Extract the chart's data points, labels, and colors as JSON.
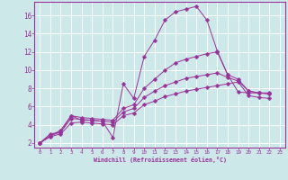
{
  "xlabel": "Windchill (Refroidissement éolien,°C)",
  "background_color": "#cce8e8",
  "grid_color": "#ffffff",
  "line_color": "#993399",
  "xlim": [
    -0.5,
    23.5
  ],
  "ylim": [
    1.5,
    17.5
  ],
  "xticks": [
    0,
    1,
    2,
    3,
    4,
    5,
    6,
    7,
    8,
    9,
    10,
    11,
    12,
    13,
    14,
    15,
    16,
    17,
    18,
    19,
    20,
    21,
    22,
    23
  ],
  "yticks": [
    2,
    4,
    6,
    8,
    10,
    12,
    14,
    16
  ],
  "series": [
    [
      2.0,
      3.0,
      3.2,
      5.0,
      4.5,
      4.5,
      4.4,
      2.6,
      8.5,
      6.9,
      11.5,
      13.3,
      15.5,
      16.4,
      16.7,
      17.0,
      15.5,
      12.1,
      9.5,
      7.6,
      7.5,
      7.5,
      7.5
    ],
    [
      2.0,
      2.8,
      3.4,
      5.0,
      4.8,
      4.7,
      4.6,
      4.5,
      5.8,
      6.2,
      8.0,
      9.0,
      10.0,
      10.8,
      11.2,
      11.5,
      11.8,
      12.0,
      9.5,
      9.0,
      7.7,
      7.5,
      7.4
    ],
    [
      2.0,
      2.8,
      3.2,
      4.7,
      4.6,
      4.5,
      4.4,
      4.3,
      5.4,
      5.8,
      7.0,
      7.7,
      8.3,
      8.7,
      9.1,
      9.3,
      9.5,
      9.7,
      9.2,
      8.8,
      7.7,
      7.5,
      7.4
    ],
    [
      2.0,
      2.7,
      3.0,
      4.2,
      4.3,
      4.2,
      4.1,
      4.0,
      5.0,
      5.3,
      6.2,
      6.6,
      7.1,
      7.4,
      7.7,
      7.9,
      8.1,
      8.3,
      8.5,
      8.7,
      7.2,
      7.0,
      6.9
    ]
  ],
  "x_values": [
    0,
    1,
    2,
    3,
    4,
    5,
    6,
    7,
    8,
    9,
    10,
    11,
    12,
    13,
    14,
    15,
    16,
    17,
    18,
    19,
    20,
    21,
    22
  ]
}
